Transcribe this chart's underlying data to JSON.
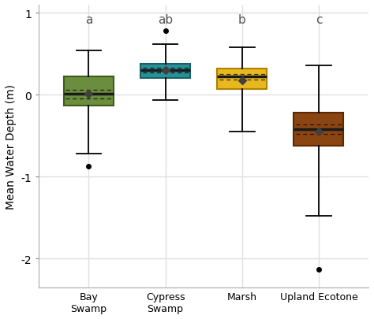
{
  "categories": [
    "Bay\nSwamp",
    "Cypress\nSwamp",
    "Marsh",
    "Upland Ecotone"
  ],
  "letters": [
    "a",
    "ab",
    "b",
    "c"
  ],
  "colors": [
    "#6b8e3e",
    "#2a9098",
    "#e8b820",
    "#8b4513"
  ],
  "edge_colors": [
    "#3d5c1a",
    "#1a6068",
    "#b08000",
    "#5c2a00"
  ],
  "box_data": [
    {
      "q1": -0.13,
      "median": 0.01,
      "q3": 0.22,
      "whislo": -0.72,
      "whishi": 0.54,
      "mean": 0.01,
      "fliers": [
        -0.87
      ]
    },
    {
      "q1": 0.2,
      "median": 0.3,
      "q3": 0.38,
      "whislo": -0.06,
      "whishi": 0.62,
      "mean": 0.3,
      "fliers": [
        0.78
      ]
    },
    {
      "q1": 0.07,
      "median": 0.22,
      "q3": 0.32,
      "whislo": -0.45,
      "whishi": 0.58,
      "mean": 0.18,
      "fliers": []
    },
    {
      "q1": -0.62,
      "median": -0.42,
      "q3": -0.22,
      "whislo": -1.48,
      "whishi": 0.36,
      "mean": -0.45,
      "fliers": [
        -2.13
      ]
    }
  ],
  "ylabel": "Mean Water Depth (m)",
  "ylim": [
    -2.35,
    1.1
  ],
  "yticks": [
    1,
    0,
    -1,
    -2
  ],
  "bg_color": "#ffffff",
  "grid_color": "#e0e0e0",
  "box_width": 0.65
}
